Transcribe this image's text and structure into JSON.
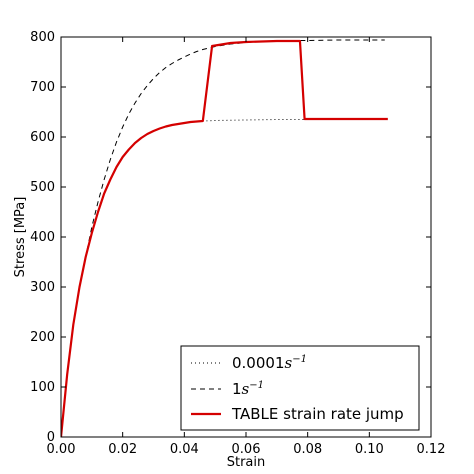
{
  "chart_data": {
    "type": "line",
    "xlabel": "Strain",
    "ylabel": "Stress [MPa]",
    "xlim": [
      0.0,
      0.12
    ],
    "ylim": [
      0,
      800
    ],
    "x_ticks": [
      "0.00",
      "0.02",
      "0.04",
      "0.06",
      "0.08",
      "0.10",
      "0.12"
    ],
    "y_ticks": [
      "0",
      "100",
      "200",
      "300",
      "400",
      "500",
      "600",
      "700",
      "800"
    ],
    "legend_position": "bottom-right",
    "grid": false,
    "series": [
      {
        "name": "0.0001",
        "name_unit": "s",
        "name_exponent": "−1",
        "style": "dotted",
        "color": "#000000",
        "x": [
          0.0,
          0.002,
          0.004,
          0.006,
          0.008,
          0.01,
          0.012,
          0.014,
          0.016,
          0.018,
          0.02,
          0.022,
          0.024,
          0.026,
          0.028,
          0.03,
          0.032,
          0.034,
          0.036,
          0.038,
          0.04,
          0.042,
          0.044,
          0.046,
          0.05,
          0.06,
          0.07,
          0.079
        ],
        "y": [
          0,
          125,
          225,
          300,
          360,
          408,
          450,
          487,
          515,
          540,
          560,
          575,
          588,
          598,
          606,
          612,
          617,
          621,
          624,
          626,
          628,
          630,
          631,
          632,
          633,
          634,
          635,
          635
        ]
      },
      {
        "name": "1",
        "name_unit": "s",
        "name_exponent": "−1",
        "style": "dashed",
        "color": "#000000",
        "x": [
          0.0,
          0.002,
          0.004,
          0.006,
          0.008,
          0.01,
          0.012,
          0.014,
          0.016,
          0.018,
          0.02,
          0.022,
          0.024,
          0.026,
          0.028,
          0.03,
          0.032,
          0.034,
          0.036,
          0.038,
          0.04,
          0.042,
          0.044,
          0.046,
          0.048,
          0.05,
          0.055,
          0.06,
          0.065,
          0.07,
          0.075,
          0.08,
          0.09,
          0.1,
          0.105
        ],
        "y": [
          0,
          125,
          225,
          300,
          360,
          420,
          470,
          515,
          555,
          590,
          620,
          646,
          668,
          687,
          703,
          717,
          729,
          739,
          747,
          754,
          760,
          766,
          771,
          775,
          778,
          781,
          786,
          789,
          791,
          792,
          793,
          793,
          794,
          794,
          794
        ]
      },
      {
        "name": "TABLE strain rate jump",
        "style": "solid",
        "color": "#d40000",
        "x": [
          0.0,
          0.002,
          0.004,
          0.006,
          0.008,
          0.01,
          0.012,
          0.014,
          0.016,
          0.018,
          0.02,
          0.022,
          0.024,
          0.026,
          0.028,
          0.03,
          0.032,
          0.034,
          0.036,
          0.038,
          0.04,
          0.042,
          0.044,
          0.046,
          0.049,
          0.052,
          0.055,
          0.06,
          0.065,
          0.07,
          0.0775,
          0.079,
          0.09,
          0.1,
          0.106
        ],
        "y": [
          0,
          125,
          225,
          300,
          360,
          408,
          450,
          487,
          515,
          540,
          560,
          575,
          588,
          598,
          606,
          612,
          617,
          621,
          624,
          626,
          628,
          630,
          631,
          632,
          782,
          785,
          788,
          790,
          791,
          792,
          792,
          636,
          636,
          636,
          636
        ]
      }
    ]
  }
}
